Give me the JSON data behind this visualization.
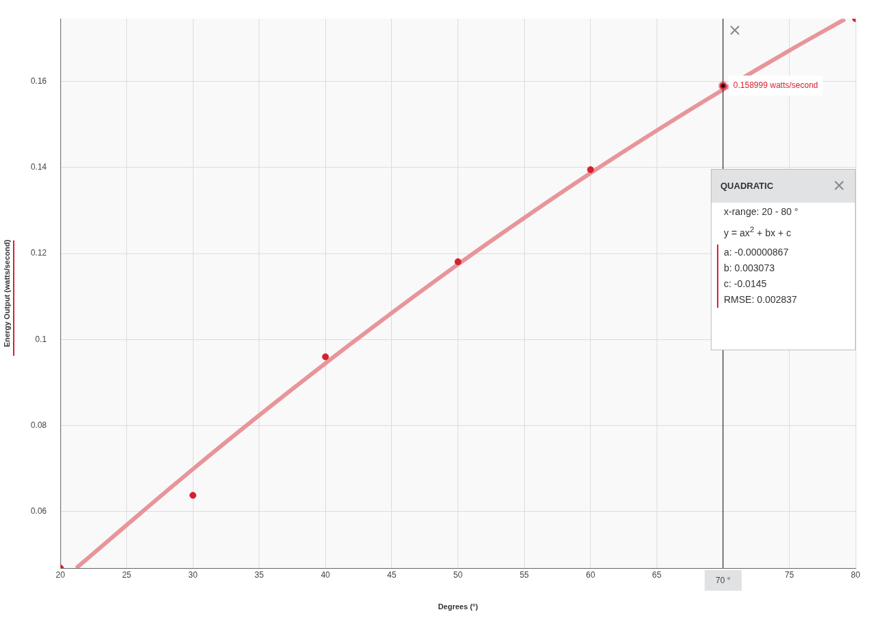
{
  "chart_data": {
    "type": "scatter",
    "xlabel": "Degrees (°)",
    "ylabel": "Energy Output (watts/second)",
    "xlim": [
      20,
      80
    ],
    "xticks": [
      20,
      25,
      30,
      35,
      40,
      45,
      50,
      55,
      60,
      65,
      75,
      80
    ],
    "ylim": [
      0.0469,
      0.1746
    ],
    "yticks": [
      0.06,
      0.08,
      0.1,
      0.12,
      0.14,
      0.16
    ],
    "grid": true,
    "marker": "circle",
    "series": [
      {
        "color": "#d62030",
        "x": [
          20,
          30,
          40,
          50,
          60,
          80
        ],
        "values": [
          0.0469,
          0.0638,
          0.096,
          0.1181,
          0.1395,
          0.1746
        ]
      },
      {
        "type": "line",
        "marker": "none",
        "color": "#e8959a",
        "x": [
          21.2,
          25,
          30,
          35,
          40,
          45,
          50,
          55,
          60,
          65,
          70,
          75,
          79.2
        ],
        "values": [
          0.0469,
          0.0569,
          0.0699,
          0.0824,
          0.0945,
          0.1062,
          0.1175,
          0.1283,
          0.1387,
          0.1486,
          0.1581,
          0.1672,
          0.1745
        ]
      }
    ],
    "ref_lines": [
      {
        "axis": "x",
        "value": 70,
        "label": "70 °",
        "color": "#000000"
      }
    ],
    "annotations": [
      {
        "text": "0.158999 watts/second",
        "x": 70,
        "y": 0.158999
      },
      "QUADRATIC",
      "x-range: 20 - 80 °",
      "y = ax$^{2}$ + bx + c",
      "a: -0.00000867",
      "b: 0.003073",
      "c: -0.0145",
      "RMSE: 0.002837"
    ]
  }
}
